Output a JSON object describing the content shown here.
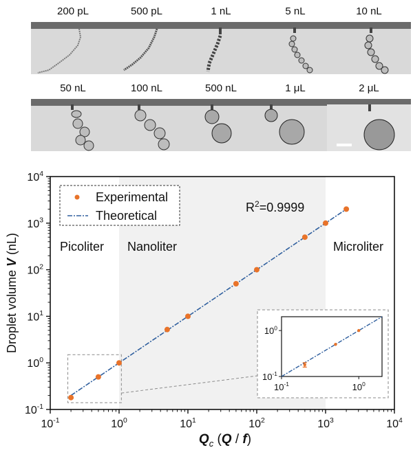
{
  "panels": {
    "labels": [
      "200 pL",
      "500 pL",
      "1 nL",
      "5 nL",
      "10 nL",
      "50 nL",
      "100 nL",
      "500 nL",
      "1 μL",
      "2 μL"
    ]
  },
  "colors": {
    "marker": "#e8732a",
    "fit_line": "#2f5f9e",
    "region_shade": "#f1f1f1",
    "axis": "#111111",
    "dashed_box": "#8a8a8a"
  },
  "chart_data": [
    {
      "type": "scatter",
      "xscale": "log",
      "yscale": "log",
      "xlim": [
        0.1,
        10000
      ],
      "ylim": [
        0.1,
        10000
      ],
      "xlabel": "Q_c (Q / f)",
      "ylabel": "Droplet volume V (nL)",
      "x_tick_labels": [
        "10^-1",
        "10^0",
        "10^1",
        "10^2",
        "10^3",
        "10^4"
      ],
      "y_tick_labels": [
        "10^-1",
        "10^0",
        "10^1",
        "10^2",
        "10^3",
        "10^4"
      ],
      "legend": {
        "position": "top-left",
        "entries": [
          "Experimental",
          "Theoretical"
        ]
      },
      "annotation": {
        "text": "R",
        "sup": "2",
        "rest": "=0.9999"
      },
      "regions": [
        {
          "label": "Picoliter",
          "x_from": 0.1,
          "x_to": 1
        },
        {
          "label": "Nanoliter",
          "x_from": 1,
          "x_to": 1000
        },
        {
          "label": "Microliter",
          "x_from": 1000,
          "x_to": 10000
        }
      ],
      "series": [
        {
          "name": "Experimental",
          "x": [
            0.2,
            0.5,
            1,
            5,
            10,
            50,
            100,
            500,
            1000,
            2000
          ],
          "y": [
            0.18,
            0.5,
            1,
            5.2,
            10,
            50,
            100,
            500,
            1000,
            2000
          ]
        },
        {
          "name": "Theoretical",
          "x": [
            0.2,
            2000
          ],
          "y": [
            0.2,
            2000
          ]
        }
      ],
      "highlight_box": {
        "x": [
          0.18,
          1.08
        ],
        "y": [
          0.14,
          1.5
        ]
      }
    },
    {
      "type": "scatter",
      "inset": true,
      "xscale": "log",
      "yscale": "log",
      "xlim": [
        0.1,
        2
      ],
      "ylim": [
        0.1,
        2
      ],
      "x_tick_labels": [
        "10^-1",
        "10^0"
      ],
      "y_tick_labels": [
        "10^-1",
        "10^0"
      ],
      "series": [
        {
          "name": "Experimental",
          "x": [
            0.2,
            0.5,
            1
          ],
          "y": [
            0.18,
            0.5,
            1
          ],
          "y_err": [
            0.02,
            0.0,
            0.0
          ]
        },
        {
          "name": "Theoretical",
          "x": [
            0.1,
            2
          ],
          "y": [
            0.1,
            2
          ]
        }
      ]
    }
  ]
}
